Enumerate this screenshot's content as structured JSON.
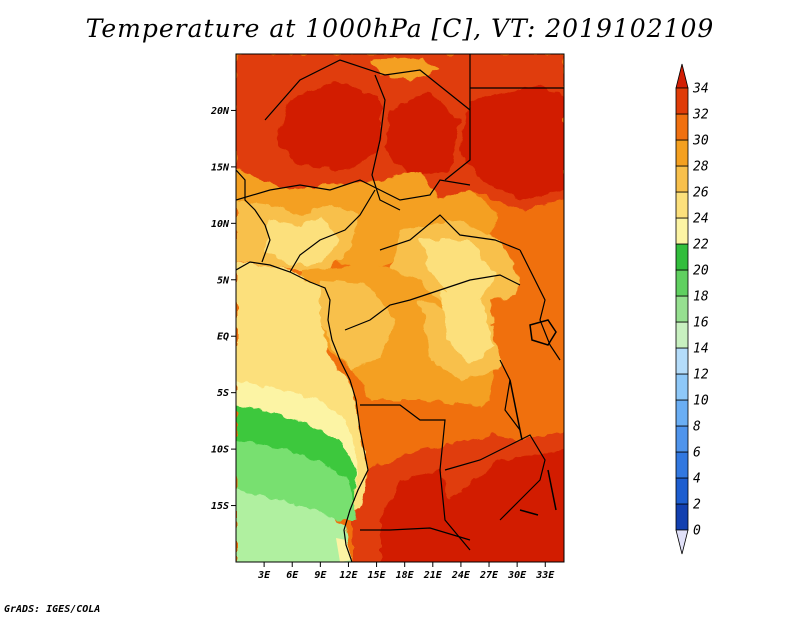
{
  "title": "Temperature at 1000hPa [C], VT: 2019102109",
  "credit": "GrADS: IGES/COLA",
  "map": {
    "lon_range": [
      0,
      35
    ],
    "lat_range": [
      -20,
      25
    ],
    "lon_ticks": [
      {
        "value": 3,
        "label": "3E"
      },
      {
        "value": 6,
        "label": "6E"
      },
      {
        "value": 9,
        "label": "9E"
      },
      {
        "value": 12,
        "label": "12E"
      },
      {
        "value": 15,
        "label": "15E"
      },
      {
        "value": 18,
        "label": "18E"
      },
      {
        "value": 21,
        "label": "21E"
      },
      {
        "value": 24,
        "label": "24E"
      },
      {
        "value": 27,
        "label": "27E"
      },
      {
        "value": 30,
        "label": "30E"
      },
      {
        "value": 33,
        "label": "33E"
      }
    ],
    "lat_ticks": [
      {
        "value": 20,
        "label": "20N"
      },
      {
        "value": 15,
        "label": "15N"
      },
      {
        "value": 10,
        "label": "10N"
      },
      {
        "value": 5,
        "label": "5N"
      },
      {
        "value": 0,
        "label": "EQ"
      },
      {
        "value": -5,
        "label": "5S"
      },
      {
        "value": -10,
        "label": "10S"
      },
      {
        "value": -15,
        "label": "15S"
      }
    ]
  },
  "colorbar": {
    "levels": [
      0,
      2,
      4,
      6,
      8,
      10,
      12,
      14,
      16,
      18,
      20,
      22,
      24,
      26,
      28,
      30,
      32,
      34
    ],
    "colors": [
      "#0a1a80",
      "#1240b0",
      "#1d5ed0",
      "#3278e0",
      "#4f94ec",
      "#6aaef4",
      "#8ec8f8",
      "#b4dcfa",
      "#c8f0c0",
      "#96e090",
      "#60d060",
      "#32be3c",
      "#fcf4a4",
      "#fce07c",
      "#f8c04c",
      "#f4a020",
      "#f07010",
      "#e03c08",
      "#d21e04"
    ],
    "under_color": "#e0e0f8"
  },
  "legend_colors": {
    "t16_18": "#b0f0a0",
    "t18_20": "#78e070",
    "t20_22": "#3cc83c",
    "t22_24": "#fcf4a4",
    "t24_26": "#fce07c",
    "t26_28": "#f8c04c",
    "t28_30": "#f4a020",
    "t30_32": "#f07010",
    "t32_34": "#e03c08",
    "t34_up": "#d21e04",
    "border": "#000000"
  }
}
